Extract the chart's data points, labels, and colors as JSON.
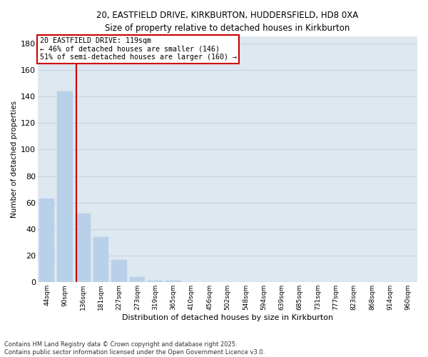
{
  "title_line1": "20, EASTFIELD DRIVE, KIRKBURTON, HUDDERSFIELD, HD8 0XA",
  "title_line2": "Size of property relative to detached houses in Kirkburton",
  "xlabel": "Distribution of detached houses by size in Kirkburton",
  "ylabel": "Number of detached properties",
  "categories": [
    "44sqm",
    "90sqm",
    "136sqm",
    "181sqm",
    "227sqm",
    "273sqm",
    "319sqm",
    "365sqm",
    "410sqm",
    "456sqm",
    "502sqm",
    "548sqm",
    "594sqm",
    "639sqm",
    "685sqm",
    "731sqm",
    "777sqm",
    "823sqm",
    "868sqm",
    "914sqm",
    "960sqm"
  ],
  "values": [
    63,
    144,
    52,
    34,
    17,
    4,
    1,
    1,
    0,
    0,
    0,
    0,
    0,
    0,
    0,
    0,
    0,
    0,
    0,
    0,
    0
  ],
  "bar_color": "#b8d0e8",
  "bar_edgecolor": "#b8d0e8",
  "vline_color": "#cc0000",
  "annotation_line1": "20 EASTFIELD DRIVE: 119sqm",
  "annotation_line2": "← 46% of detached houses are smaller (146)",
  "annotation_line3": "51% of semi-detached houses are larger (160) →",
  "annotation_box_color": "#cc0000",
  "ylim": [
    0,
    185
  ],
  "yticks": [
    0,
    20,
    40,
    60,
    80,
    100,
    120,
    140,
    160,
    180
  ],
  "grid_color": "#c8d4e4",
  "background_color": "#dde8f0",
  "footer_line1": "Contains HM Land Registry data © Crown copyright and database right 2025.",
  "footer_line2": "Contains public sector information licensed under the Open Government Licence v3.0."
}
